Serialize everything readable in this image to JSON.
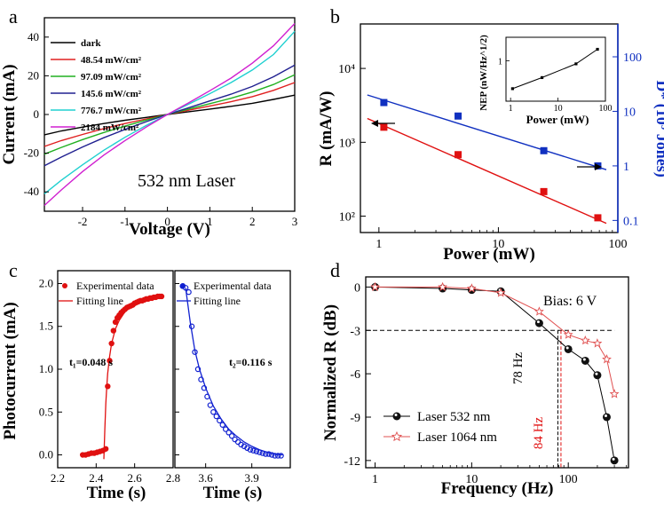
{
  "chart_data": [
    {
      "panel": "a",
      "type": "line",
      "xlabel": "Voltage (V)",
      "ylabel": "Current (mA)",
      "xlim": [
        -2.9,
        3
      ],
      "ylim": [
        -50,
        50
      ],
      "xticks": [
        -2,
        -1,
        0,
        1,
        2,
        3
      ],
      "yticks": [
        -40,
        -20,
        0,
        20,
        40
      ],
      "annotation": "532 nm Laser",
      "legend_position": "top-left",
      "x": [
        -2.9,
        -2.5,
        -2,
        -1.5,
        -1,
        -0.5,
        0,
        0.5,
        1,
        1.5,
        2,
        2.5,
        3
      ],
      "series": [
        {
          "name": "dark",
          "color": "#000000",
          "values": [
            -10.5,
            -8.5,
            -6.5,
            -4.7,
            -3.0,
            -1.5,
            0,
            1.4,
            2.8,
            4.2,
            5.8,
            7.8,
            10.0
          ]
        },
        {
          "name": "48.54 mW/cm²",
          "color": "#e02020",
          "values": [
            -16.5,
            -13.5,
            -10.3,
            -7.3,
            -4.7,
            -2.3,
            0,
            2.2,
            4.4,
            6.6,
            9.2,
            12.5,
            16.5
          ]
        },
        {
          "name": "97.09 mW/cm²",
          "color": "#20b020",
          "values": [
            -20.5,
            -17.0,
            -13.0,
            -9.3,
            -6.0,
            -2.9,
            0,
            2.8,
            5.6,
            8.4,
            11.6,
            15.5,
            20.5
          ]
        },
        {
          "name": "145.6 mW/cm²",
          "color": "#202090",
          "values": [
            -26.5,
            -22.0,
            -16.8,
            -12.0,
            -7.7,
            -3.7,
            0,
            3.5,
            7.0,
            10.5,
            14.5,
            19.5,
            25.5
          ]
        },
        {
          "name": "776.7 mW/cm²",
          "color": "#20d0d0",
          "values": [
            -41.0,
            -34.0,
            -26.0,
            -18.5,
            -11.8,
            -5.7,
            0,
            5.3,
            10.8,
            16.5,
            23.0,
            31.0,
            43.0
          ]
        },
        {
          "name": "2184  mW/cm²",
          "color": "#d020d0",
          "values": [
            -47.0,
            -39.0,
            -29.5,
            -21.0,
            -13.5,
            -6.5,
            0,
            6.0,
            12.3,
            18.8,
            26.5,
            35.5,
            47.0
          ]
        }
      ]
    },
    {
      "panel": "b",
      "type": "scatter",
      "xlabel": "Power (mW)",
      "ylabel": "R (mA/W)",
      "y2label": "D* (10⁹ Jones)",
      "xscale": "log",
      "yscale": "log",
      "xlim": [
        0.7,
        100
      ],
      "ylim": [
        60,
        40000
      ],
      "y2lim": [
        0.06,
        400
      ],
      "xtick_labels": [
        "1",
        "10",
        "100"
      ],
      "ytick_labels": [
        "10²",
        "10³",
        "10⁴"
      ],
      "y2tick_labels": [
        "0.1",
        "1",
        "10",
        "100"
      ],
      "series": [
        {
          "name": "R",
          "color": "#e01010",
          "axis": "left",
          "x": [
            1.1,
            4.6,
            24,
            68
          ],
          "values": [
            1600,
            680,
            215,
            95
          ]
        },
        {
          "name": "D*",
          "color": "#1030c0",
          "axis": "right",
          "x": [
            1.1,
            4.6,
            24,
            68
          ],
          "values": [
            14.5,
            8.2,
            1.9,
            1.0
          ]
        }
      ],
      "fit_lines": [
        {
          "color": "#e01010",
          "axis": "left",
          "x": [
            0.8,
            80
          ],
          "values": [
            2100,
            80
          ]
        },
        {
          "color": "#1030c0",
          "axis": "right",
          "x": [
            0.8,
            80
          ],
          "values": [
            20,
            0.85
          ]
        }
      ],
      "inset": {
        "xlabel": "Power (mW)",
        "ylabel": "NEP (nW/Hz^1/2)",
        "xscale": "log",
        "yscale": "log",
        "xlim": [
          0.8,
          100
        ],
        "ylim": [
          0.5,
          1.5
        ],
        "xtick_labels": [
          "1",
          "10",
          "100"
        ],
        "ytick_labels": [
          "1"
        ],
        "x": [
          1.1,
          4.6,
          24,
          68
        ],
        "values": [
          0.62,
          0.75,
          0.95,
          1.22
        ]
      }
    },
    {
      "panel": "c-left",
      "type": "scatter",
      "xlabel": "Time (s)",
      "ylabel": "Photocurrent (mA)",
      "xlim": [
        2.2,
        2.8
      ],
      "ylim": [
        -0.15,
        2.15
      ],
      "xtick_labels": [
        "2.2",
        "2.4",
        "2.6",
        "2.8"
      ],
      "ytick_labels": [
        "0.0",
        "0.5",
        "1.0",
        "1.5",
        "2.0"
      ],
      "annotation": "t₁=0.048 s",
      "legend": [
        "Experimental data",
        "Fitting line"
      ],
      "color": "#e01010",
      "x": [
        2.33,
        2.345,
        2.36,
        2.375,
        2.39,
        2.405,
        2.42,
        2.435,
        2.45,
        2.46,
        2.47,
        2.48,
        2.49,
        2.5,
        2.51,
        2.52,
        2.53,
        2.54,
        2.55,
        2.56,
        2.57,
        2.58,
        2.59,
        2.6,
        2.61,
        2.62,
        2.63,
        2.64,
        2.65,
        2.66,
        2.67,
        2.68,
        2.69,
        2.7,
        2.71,
        2.72,
        2.73,
        2.74
      ],
      "values": [
        0.0,
        0.0,
        0.01,
        0.02,
        0.02,
        0.03,
        0.04,
        0.05,
        0.07,
        0.8,
        1.1,
        1.3,
        1.45,
        1.55,
        1.6,
        1.63,
        1.66,
        1.68,
        1.7,
        1.72,
        1.73,
        1.74,
        1.75,
        1.77,
        1.78,
        1.79,
        1.8,
        1.8,
        1.81,
        1.82,
        1.82,
        1.83,
        1.83,
        1.84,
        1.84,
        1.85,
        1.85,
        1.85
      ],
      "fit_x": [
        2.44,
        2.445,
        2.45,
        2.455,
        2.46,
        2.47,
        2.48,
        2.5,
        2.52,
        2.55,
        2.6,
        2.65,
        2.7,
        2.75
      ],
      "fit_values": [
        -0.05,
        0.3,
        0.6,
        0.8,
        0.95,
        1.15,
        1.3,
        1.47,
        1.57,
        1.67,
        1.76,
        1.8,
        1.83,
        1.85
      ]
    },
    {
      "panel": "c-right",
      "type": "scatter",
      "xlabel": "Time (s)",
      "xlim": [
        3.4,
        4.15
      ],
      "ylim": [
        -0.15,
        2.15
      ],
      "xtick_labels": [
        "3.6",
        "3.9"
      ],
      "annotation": "t₂=0.116 s",
      "legend": [
        "Experimental data",
        "Fitting line"
      ],
      "color": "#1020d0",
      "x": [
        3.45,
        3.47,
        3.49,
        3.51,
        3.53,
        3.55,
        3.57,
        3.59,
        3.61,
        3.63,
        3.65,
        3.67,
        3.69,
        3.71,
        3.73,
        3.75,
        3.77,
        3.79,
        3.81,
        3.83,
        3.85,
        3.87,
        3.89,
        3.91,
        3.93,
        3.95,
        3.97,
        3.99,
        4.01,
        4.03,
        4.05,
        4.07,
        4.09
      ],
      "values": [
        1.97,
        1.95,
        1.9,
        1.5,
        1.2,
        1.0,
        0.88,
        0.78,
        0.68,
        0.58,
        0.5,
        0.45,
        0.4,
        0.35,
        0.3,
        0.26,
        0.22,
        0.18,
        0.15,
        0.12,
        0.1,
        0.08,
        0.06,
        0.05,
        0.04,
        0.03,
        0.02,
        0.01,
        0.01,
        0.0,
        -0.01,
        -0.01,
        -0.01
      ],
      "fit_x": [
        3.47,
        3.5,
        3.53,
        3.56,
        3.6,
        3.65,
        3.7,
        3.75,
        3.8,
        3.85,
        3.9,
        3.95,
        4.0,
        4.05,
        4.1
      ],
      "fit_values": [
        1.95,
        1.55,
        1.22,
        1.0,
        0.78,
        0.57,
        0.42,
        0.3,
        0.22,
        0.15,
        0.1,
        0.06,
        0.03,
        0.01,
        0.0
      ]
    },
    {
      "panel": "d",
      "type": "line",
      "xlabel": "Frequency (Hz)",
      "ylabel": "Normalized R (dB)",
      "xscale": "log",
      "xlim": [
        0.8,
        420
      ],
      "ylim": [
        -12.5,
        0.7
      ],
      "xtick_labels": [
        "1",
        "10",
        "100"
      ],
      "yticks": [
        0,
        -3,
        -6,
        -9,
        -12
      ],
      "annotations": [
        "Bias: 6 V",
        "78 Hz",
        "84 Hz"
      ],
      "reference_lines": [
        {
          "y": -3,
          "style": "dashed"
        },
        {
          "x": 78,
          "color": "#000000"
        },
        {
          "x": 84,
          "color": "#e01010"
        }
      ],
      "legend_position": "bottom-left",
      "series": [
        {
          "name": "Laser 532 nm",
          "color": "#000000",
          "x": [
            1,
            5,
            10,
            20,
            50,
            100,
            150,
            200,
            250,
            300
          ],
          "values": [
            0,
            -0.1,
            -0.2,
            -0.3,
            -2.5,
            -4.3,
            -5.1,
            -6.1,
            -9.0,
            -12.0
          ]
        },
        {
          "name": "Laser 1064 nm",
          "color": "#e05050",
          "x": [
            1,
            5,
            10,
            20,
            50,
            100,
            150,
            200,
            250,
            300
          ],
          "values": [
            0,
            0,
            -0.1,
            -0.4,
            -1.7,
            -3.3,
            -3.7,
            -3.9,
            -5.0,
            -7.4
          ]
        }
      ]
    }
  ],
  "panel_labels": [
    "a",
    "b",
    "c",
    "d"
  ]
}
